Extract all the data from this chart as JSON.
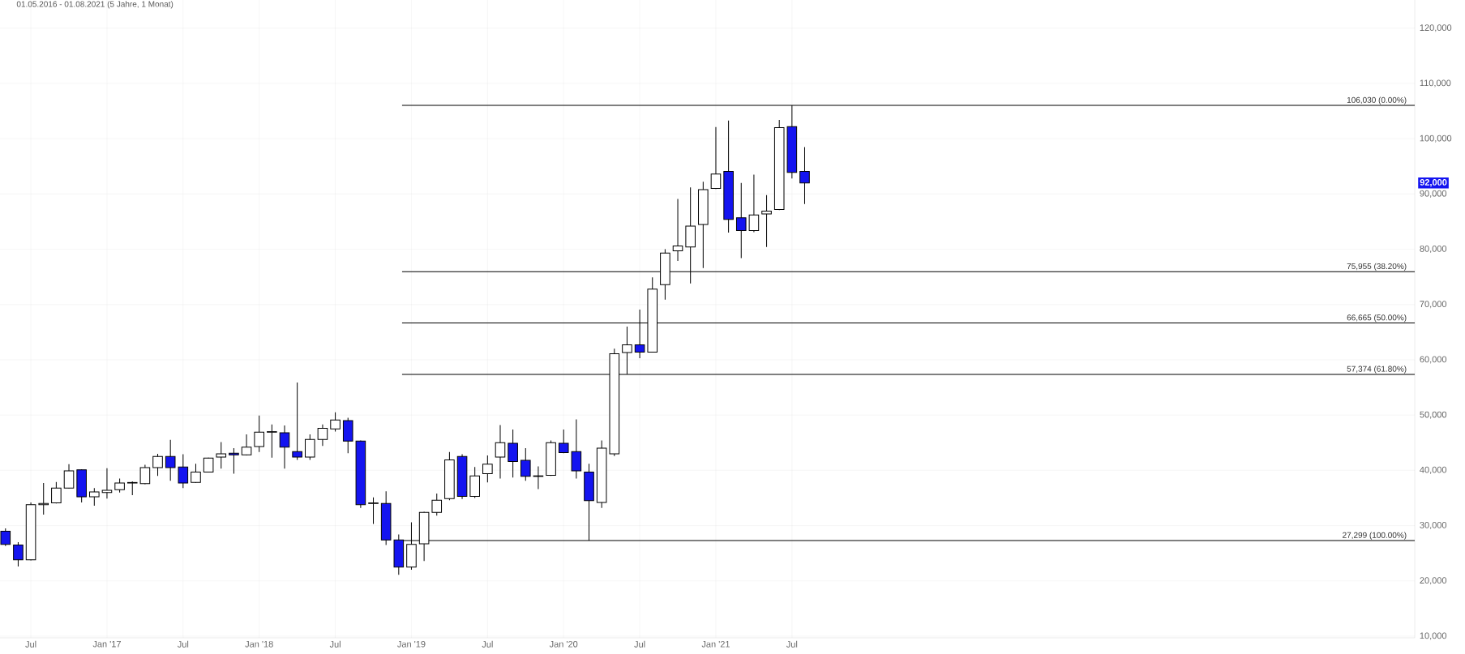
{
  "chart_data": {
    "type": "candlestick",
    "subtitle": "01.05.2016 - 01.08.2021  (5 Jahre, 1 Monat)",
    "x": [
      "2016-05",
      "2016-06",
      "2016-07",
      "2016-08",
      "2016-09",
      "2016-10",
      "2016-11",
      "2016-12",
      "2017-01",
      "2017-02",
      "2017-03",
      "2017-04",
      "2017-05",
      "2017-06",
      "2017-07",
      "2017-08",
      "2017-09",
      "2017-10",
      "2017-11",
      "2017-12",
      "2018-01",
      "2018-02",
      "2018-03",
      "2018-04",
      "2018-05",
      "2018-06",
      "2018-07",
      "2018-08",
      "2018-09",
      "2018-10",
      "2018-11",
      "2018-12",
      "2019-01",
      "2019-02",
      "2019-03",
      "2019-04",
      "2019-05",
      "2019-06",
      "2019-07",
      "2019-08",
      "2019-09",
      "2019-10",
      "2019-11",
      "2019-12",
      "2020-01",
      "2020-02",
      "2020-03",
      "2020-04",
      "2020-05",
      "2020-06",
      "2020-07",
      "2020-08",
      "2020-09",
      "2020-10",
      "2020-11",
      "2020-12",
      "2021-01",
      "2021-02",
      "2021-03",
      "2021-04",
      "2021-05",
      "2021-06",
      "2021-07",
      "2021-08"
    ],
    "ohlc": [
      [
        29000,
        29500,
        26300,
        26600
      ],
      [
        26500,
        27000,
        22600,
        23800
      ],
      [
        23800,
        34200,
        23700,
        33800
      ],
      [
        33800,
        37700,
        32000,
        34000
      ],
      [
        34100,
        37900,
        34000,
        36800
      ],
      [
        36800,
        41100,
        36700,
        39900
      ],
      [
        40100,
        40200,
        34200,
        35200
      ],
      [
        35200,
        36800,
        33600,
        36100
      ],
      [
        36000,
        40400,
        34900,
        36400
      ],
      [
        36500,
        38500,
        36000,
        37700
      ],
      [
        37700,
        38000,
        35500,
        37800
      ],
      [
        37600,
        41000,
        37500,
        40500
      ],
      [
        40500,
        43000,
        39000,
        42500
      ],
      [
        42500,
        45500,
        38100,
        40500
      ],
      [
        40600,
        42900,
        36800,
        37700
      ],
      [
        37800,
        41200,
        37700,
        39700
      ],
      [
        39700,
        42300,
        39600,
        42200
      ],
      [
        42400,
        45100,
        40300,
        43000
      ],
      [
        43100,
        44000,
        39400,
        42800
      ],
      [
        42800,
        46500,
        42700,
        44200
      ],
      [
        44300,
        49900,
        43300,
        46900
      ],
      [
        46900,
        48300,
        42300,
        47000
      ],
      [
        46800,
        48100,
        40300,
        44200
      ],
      [
        43400,
        55900,
        41900,
        42400
      ],
      [
        42400,
        46500,
        41900,
        45600
      ],
      [
        45600,
        48300,
        44400,
        47600
      ],
      [
        47500,
        50500,
        47000,
        49100
      ],
      [
        49000,
        49500,
        43100,
        45300
      ],
      [
        45300,
        45400,
        33200,
        33800
      ],
      [
        34000,
        35100,
        30300,
        34100
      ],
      [
        34000,
        36200,
        26500,
        27400
      ],
      [
        27400,
        28400,
        21100,
        22500
      ],
      [
        22500,
        30600,
        22000,
        26600
      ],
      [
        26700,
        32500,
        23600,
        32400
      ],
      [
        32400,
        35800,
        31800,
        34600
      ],
      [
        34900,
        43300,
        34600,
        41900
      ],
      [
        42500,
        42900,
        34800,
        35300
      ],
      [
        35300,
        40600,
        35000,
        39000
      ],
      [
        39400,
        42700,
        37800,
        41100
      ],
      [
        42400,
        48200,
        38500,
        45000
      ],
      [
        44900,
        47400,
        38700,
        41600
      ],
      [
        41800,
        44000,
        38100,
        38900
      ],
      [
        38900,
        40700,
        36600,
        39000
      ],
      [
        39100,
        45400,
        39000,
        45000
      ],
      [
        44900,
        47400,
        43100,
        43200
      ],
      [
        43400,
        49200,
        38500,
        39900
      ],
      [
        39700,
        41200,
        27300,
        34500
      ],
      [
        34200,
        45400,
        33200,
        44000
      ],
      [
        43000,
        62000,
        42600,
        61100
      ],
      [
        61300,
        66000,
        57400,
        62700
      ],
      [
        62700,
        69100,
        60300,
        61400
      ],
      [
        61400,
        74900,
        61300,
        72800
      ],
      [
        73600,
        80000,
        70900,
        79300
      ],
      [
        79700,
        89100,
        77900,
        80600
      ],
      [
        80400,
        91200,
        73800,
        84200
      ],
      [
        84500,
        92200,
        76600,
        90800
      ],
      [
        91000,
        102100,
        90900,
        93600
      ],
      [
        94100,
        103300,
        83000,
        85400
      ],
      [
        85700,
        92000,
        78400,
        83400
      ],
      [
        83400,
        93500,
        83100,
        86200
      ],
      [
        86400,
        89800,
        80400,
        86900
      ],
      [
        87200,
        103400,
        87100,
        102000
      ],
      [
        102200,
        106030,
        92800,
        93900
      ],
      [
        94100,
        98500,
        88200,
        92000
      ]
    ],
    "colors": [
      "#1414f0",
      "#1414f0",
      "#ffffff",
      "#ffffff",
      "#ffffff",
      "#ffffff",
      "#1414f0",
      "#ffffff",
      "#ffffff",
      "#ffffff",
      "#ffffff",
      "#ffffff",
      "#ffffff",
      "#1414f0",
      "#1414f0",
      "#ffffff",
      "#ffffff",
      "#ffffff",
      "#1414f0",
      "#ffffff",
      "#ffffff",
      "#ffffff",
      "#1414f0",
      "#1414f0",
      "#ffffff",
      "#ffffff",
      "#ffffff",
      "#1414f0",
      "#1414f0",
      "#ffffff",
      "#1414f0",
      "#1414f0",
      "#ffffff",
      "#ffffff",
      "#ffffff",
      "#ffffff",
      "#1414f0",
      "#ffffff",
      "#ffffff",
      "#ffffff",
      "#1414f0",
      "#1414f0",
      "#ffffff",
      "#ffffff",
      "#1414f0",
      "#1414f0",
      "#1414f0",
      "#ffffff",
      "#ffffff",
      "#ffffff",
      "#1414f0",
      "#ffffff",
      "#ffffff",
      "#ffffff",
      "#ffffff",
      "#ffffff",
      "#ffffff",
      "#1414f0",
      "#1414f0",
      "#ffffff",
      "#ffffff",
      "#ffffff",
      "#1414f0",
      "#1414f0"
    ],
    "xlim": [
      "2016-04-18",
      "2025-08-04"
    ],
    "xticks": [
      {
        "value": "2016-07",
        "label": "Jul"
      },
      {
        "value": "2017-01",
        "label": "Jan '17"
      },
      {
        "value": "2017-07",
        "label": "Jul"
      },
      {
        "value": "2018-01",
        "label": "Jan '18"
      },
      {
        "value": "2018-07",
        "label": "Jul"
      },
      {
        "value": "2019-01",
        "label": "Jan '19"
      },
      {
        "value": "2019-07",
        "label": "Jul"
      },
      {
        "value": "2020-01",
        "label": "Jan '20"
      },
      {
        "value": "2020-07",
        "label": "Jul"
      },
      {
        "value": "2021-01",
        "label": "Jan '21"
      },
      {
        "value": "2021-07",
        "label": "Jul"
      }
    ],
    "ylim": [
      9700,
      125100
    ],
    "yticks": [
      {
        "value": 10000,
        "label": "10,000"
      },
      {
        "value": 20000,
        "label": "20,000"
      },
      {
        "value": 30000,
        "label": "30,000"
      },
      {
        "value": 40000,
        "label": "40,000"
      },
      {
        "value": 50000,
        "label": "50,000"
      },
      {
        "value": 60000,
        "label": "60,000"
      },
      {
        "value": 70000,
        "label": "70,000"
      },
      {
        "value": 80000,
        "label": "80,000"
      },
      {
        "value": 90000,
        "label": "90,000"
      },
      {
        "value": 100000,
        "label": "100,000"
      },
      {
        "value": 110000,
        "label": "110,000"
      },
      {
        "value": 120000,
        "label": "120,000"
      }
    ],
    "ref_lines": [
      {
        "axis": "y",
        "value": 106030,
        "label": "106,030 (0.00%)",
        "color": "#000000"
      },
      {
        "axis": "y",
        "value": 75955,
        "label": "75,955 (38.20%)",
        "color": "#000000"
      },
      {
        "axis": "y",
        "value": 66665,
        "label": "66,665 (50.00%)",
        "color": "#000000"
      },
      {
        "axis": "y",
        "value": 57374,
        "label": "57,374 (61.80%)",
        "color": "#000000"
      },
      {
        "axis": "y",
        "value": 27299,
        "label": "27,299 (100.00%)",
        "color": "#000000"
      }
    ],
    "annotations": [
      "92,000"
    ],
    "grid": true
  }
}
